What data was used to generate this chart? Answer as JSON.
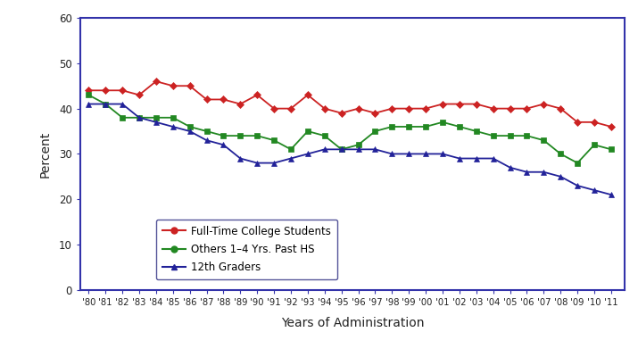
{
  "years": [
    1980,
    1981,
    1982,
    1983,
    1984,
    1985,
    1986,
    1987,
    1988,
    1989,
    1990,
    1991,
    1992,
    1993,
    1994,
    1995,
    1996,
    1997,
    1998,
    1999,
    2000,
    2001,
    2002,
    2003,
    2004,
    2005,
    2006,
    2007,
    2008,
    2009,
    2010,
    2011
  ],
  "full_time_college": [
    44,
    44,
    44,
    43,
    46,
    45,
    45,
    42,
    42,
    41,
    43,
    40,
    40,
    43,
    40,
    39,
    40,
    39,
    40,
    40,
    40,
    41,
    41,
    41,
    40,
    40,
    40,
    41,
    40,
    37,
    37,
    36
  ],
  "others_1_4_yrs": [
    43,
    41,
    38,
    38,
    38,
    38,
    36,
    35,
    34,
    34,
    34,
    33,
    31,
    35,
    34,
    31,
    32,
    35,
    36,
    36,
    36,
    37,
    36,
    35,
    34,
    34,
    34,
    33,
    30,
    28,
    32,
    31
  ],
  "twelfth_graders": [
    41,
    41,
    41,
    38,
    37,
    36,
    35,
    33,
    32,
    29,
    28,
    28,
    29,
    30,
    31,
    31,
    31,
    31,
    30,
    30,
    30,
    30,
    29,
    29,
    29,
    27,
    26,
    26,
    25,
    23,
    22,
    21
  ],
  "colors": {
    "full_time_college": "#cc2222",
    "others_1_4_yrs": "#228822",
    "twelfth_graders": "#222299"
  },
  "markers": {
    "full_time_college": "D",
    "others_1_4_yrs": "s",
    "twelfth_graders": "^"
  },
  "legend_markers": {
    "full_time_college": "o",
    "others_1_4_yrs": "o",
    "twelfth_graders": "^"
  },
  "labels": {
    "full_time_college": "Full-Time College Students",
    "others_1_4_yrs": "Others 1–4 Yrs. Past HS",
    "twelfth_graders": "12th Graders"
  },
  "xlabel": "Years of Administration",
  "ylabel": "Percent",
  "ylim": [
    0,
    60
  ],
  "yticks": [
    0,
    10,
    20,
    30,
    40,
    50,
    60
  ],
  "spine_color": "#3333aa",
  "background_color": "#ffffff",
  "plot_bg": "#ffffff"
}
